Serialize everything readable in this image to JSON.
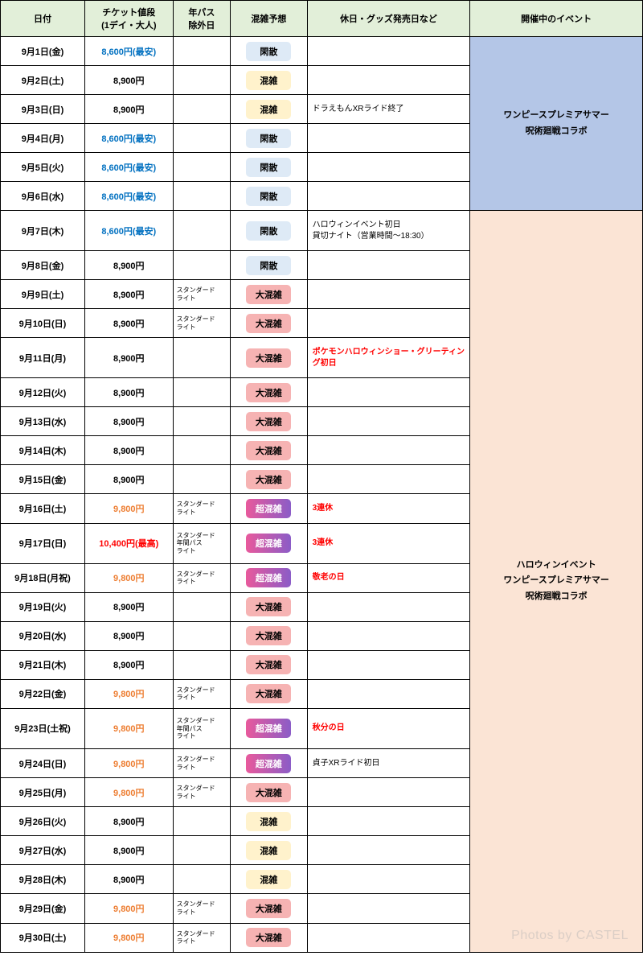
{
  "headers": {
    "date": "日付",
    "price": "チケット値段",
    "price_sub": "(1デイ・大人)",
    "pass": "年パス\n除外日",
    "crowd": "混雑予想",
    "note": "休日・グッズ発売日など",
    "event": "開催中のイベント"
  },
  "crowd_levels": {
    "1": {
      "label": "閑散",
      "class": "lv-1"
    },
    "2": {
      "label": "混雑",
      "class": "lv-2"
    },
    "3": {
      "label": "大混雑",
      "class": "lv-3"
    },
    "4": {
      "label": "超混雑",
      "class": "lv-4"
    }
  },
  "price_classes": {
    "low": "price-low",
    "mid": "price-mid",
    "high": "price-high",
    "max": "price-max"
  },
  "events": [
    {
      "rowspan": 6,
      "class": "event-1",
      "text": "ワンピースプレミアサマー\n呪術廻戦コラボ"
    },
    {
      "rowspan": 24,
      "class": "event-2",
      "text": "ハロウィンイベント\nワンピースプレミアサマー\n呪術廻戦コラボ"
    }
  ],
  "rows": [
    {
      "date": "9月1日(金)",
      "price": "8,600円(最安)",
      "pc": "low",
      "pass": "",
      "crowd": 1,
      "note": "",
      "nred": false,
      "event_idx": 0
    },
    {
      "date": "9月2日(土)",
      "price": "8,900円",
      "pc": "mid",
      "pass": "",
      "crowd": 2,
      "note": "",
      "nred": false
    },
    {
      "date": "9月3日(日)",
      "price": "8,900円",
      "pc": "mid",
      "pass": "",
      "crowd": 2,
      "note": "ドラえもんXRライド終了",
      "nred": false
    },
    {
      "date": "9月4日(月)",
      "price": "8,600円(最安)",
      "pc": "low",
      "pass": "",
      "crowd": 1,
      "note": "",
      "nred": false
    },
    {
      "date": "9月5日(火)",
      "price": "8,600円(最安)",
      "pc": "low",
      "pass": "",
      "crowd": 1,
      "note": "",
      "nred": false
    },
    {
      "date": "9月6日(水)",
      "price": "8,600円(最安)",
      "pc": "low",
      "pass": "",
      "crowd": 1,
      "note": "",
      "nred": false
    },
    {
      "date": "9月7日(木)",
      "price": "8,600円(最安)",
      "pc": "low",
      "pass": "",
      "crowd": 1,
      "note": "ハロウィンイベント初日\n貸切ナイト（営業時間〜18:30）",
      "nred": false,
      "event_idx": 1,
      "tall": true
    },
    {
      "date": "9月8日(金)",
      "price": "8,900円",
      "pc": "mid",
      "pass": "",
      "crowd": 1,
      "note": "",
      "nred": false
    },
    {
      "date": "9月9日(土)",
      "price": "8,900円",
      "pc": "mid",
      "pass": "スタンダード\nライト",
      "crowd": 3,
      "note": "",
      "nred": false
    },
    {
      "date": "9月10日(日)",
      "price": "8,900円",
      "pc": "mid",
      "pass": "スタンダード\nライト",
      "crowd": 3,
      "note": "",
      "nred": false
    },
    {
      "date": "9月11日(月)",
      "price": "8,900円",
      "pc": "mid",
      "pass": "",
      "crowd": 3,
      "note": "ポケモンハロウィンショー・グリーティング初日",
      "nred": true,
      "tall": true
    },
    {
      "date": "9月12日(火)",
      "price": "8,900円",
      "pc": "mid",
      "pass": "",
      "crowd": 3,
      "note": "",
      "nred": false
    },
    {
      "date": "9月13日(水)",
      "price": "8,900円",
      "pc": "mid",
      "pass": "",
      "crowd": 3,
      "note": "",
      "nred": false
    },
    {
      "date": "9月14日(木)",
      "price": "8,900円",
      "pc": "mid",
      "pass": "",
      "crowd": 3,
      "note": "",
      "nred": false
    },
    {
      "date": "9月15日(金)",
      "price": "8,900円",
      "pc": "mid",
      "pass": "",
      "crowd": 3,
      "note": "",
      "nred": false
    },
    {
      "date": "9月16日(土)",
      "price": "9,800円",
      "pc": "high",
      "pass": "スタンダード\nライト",
      "crowd": 4,
      "note": "3連休",
      "nred": true
    },
    {
      "date": "9月17日(日)",
      "price": "10,400円(最高)",
      "pc": "max",
      "pass": "スタンダード\n年間パス\nライト",
      "crowd": 4,
      "note": "3連休",
      "nred": true,
      "tall": true
    },
    {
      "date": "9月18日(月祝)",
      "price": "9,800円",
      "pc": "high",
      "pass": "スタンダード\nライト",
      "crowd": 4,
      "note": "敬老の日",
      "nred": true
    },
    {
      "date": "9月19日(火)",
      "price": "8,900円",
      "pc": "mid",
      "pass": "",
      "crowd": 3,
      "note": "",
      "nred": false
    },
    {
      "date": "9月20日(水)",
      "price": "8,900円",
      "pc": "mid",
      "pass": "",
      "crowd": 3,
      "note": "",
      "nred": false
    },
    {
      "date": "9月21日(木)",
      "price": "8,900円",
      "pc": "mid",
      "pass": "",
      "crowd": 3,
      "note": "",
      "nred": false
    },
    {
      "date": "9月22日(金)",
      "price": "9,800円",
      "pc": "high",
      "pass": "スタンダード\nライト",
      "crowd": 3,
      "note": "",
      "nred": false
    },
    {
      "date": "9月23日(土祝)",
      "price": "9,800円",
      "pc": "high",
      "pass": "スタンダード\n年間パス\nライト",
      "crowd": 4,
      "note": "秋分の日",
      "nred": true,
      "tall": true
    },
    {
      "date": "9月24日(日)",
      "price": "9,800円",
      "pc": "high",
      "pass": "スタンダード\nライト",
      "crowd": 4,
      "note": "貞子XRライド初日",
      "nred": false
    },
    {
      "date": "9月25日(月)",
      "price": "9,800円",
      "pc": "high",
      "pass": "スタンダード\nライト",
      "crowd": 3,
      "note": "",
      "nred": false
    },
    {
      "date": "9月26日(火)",
      "price": "8,900円",
      "pc": "mid",
      "pass": "",
      "crowd": 2,
      "note": "",
      "nred": false
    },
    {
      "date": "9月27日(水)",
      "price": "8,900円",
      "pc": "mid",
      "pass": "",
      "crowd": 2,
      "note": "",
      "nred": false
    },
    {
      "date": "9月28日(木)",
      "price": "8,900円",
      "pc": "mid",
      "pass": "",
      "crowd": 2,
      "note": "",
      "nred": false
    },
    {
      "date": "9月29日(金)",
      "price": "9,800円",
      "pc": "high",
      "pass": "スタンダード\nライト",
      "crowd": 3,
      "note": "",
      "nred": false
    },
    {
      "date": "9月30日(土)",
      "price": "9,800円",
      "pc": "high",
      "pass": "スタンダード\nライト",
      "crowd": 3,
      "note": "",
      "nred": false
    }
  ],
  "watermark": "Photos by CASTEL"
}
